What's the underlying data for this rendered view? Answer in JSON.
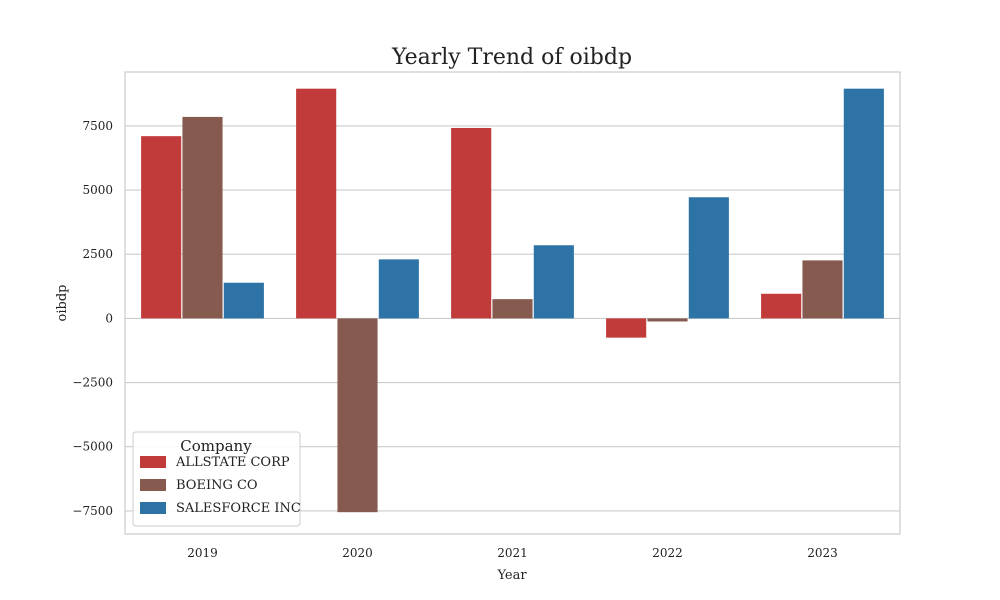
{
  "chart_data": {
    "type": "bar",
    "title": "Yearly Trend of oibdp",
    "xlabel": "Year",
    "ylabel": "oibdp",
    "categories": [
      "2019",
      "2020",
      "2021",
      "2022",
      "2023"
    ],
    "series": [
      {
        "name": "ALLSTATE CORP",
        "color": "#c23b3b",
        "values": [
          7100,
          8950,
          7420,
          -750,
          960
        ]
      },
      {
        "name": "BOEING CO",
        "color": "#875a50",
        "values": [
          7850,
          -7550,
          750,
          -120,
          2260
        ]
      },
      {
        "name": "SALESFORCE INC",
        "color": "#2e73a6",
        "values": [
          1390,
          2300,
          2850,
          4720,
          8950
        ]
      }
    ],
    "ylim": [
      -8400,
      9600
    ],
    "yticks": [
      -7500,
      -5000,
      -2500,
      0,
      2500,
      5000,
      7500
    ],
    "ytick_labels": [
      "−7500",
      "−5000",
      "−2500",
      "0",
      "2500",
      "5000",
      "7500"
    ],
    "grid": true,
    "legend": {
      "title": "Company",
      "position": "lower-left"
    }
  }
}
